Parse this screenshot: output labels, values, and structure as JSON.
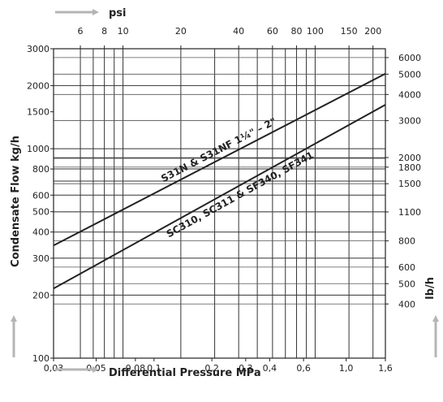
{
  "chart_data": {
    "type": "line",
    "title": "",
    "xlabel": "Differential Pressure MPa",
    "x2label": "psi",
    "ylabel": "Condensate Flow kg/h",
    "y2label": "lb/h",
    "x_scale": "log",
    "y_scale": "log",
    "xlim": [
      0.03,
      1.6
    ],
    "ylim": [
      100,
      3000
    ],
    "x_ticks": [
      0.03,
      0.05,
      0.08,
      0.1,
      0.2,
      0.3,
      0.4,
      0.6,
      1.0,
      1.6
    ],
    "x_tick_labels": [
      "0,03",
      "0,05",
      "0,08",
      "0,1",
      "0,2",
      "0,3",
      "0,4",
      "0,6",
      "1,0",
      "1,6"
    ],
    "y_ticks": [
      100,
      200,
      300,
      400,
      500,
      600,
      800,
      1000,
      1500,
      2000,
      3000
    ],
    "y_tick_labels": [
      "100",
      "200",
      "300",
      "400",
      "500",
      "600",
      "800",
      "1000",
      "1500",
      "2000",
      "3000"
    ],
    "x2_ticks": [
      6,
      8,
      10,
      20,
      40,
      60,
      80,
      100,
      150,
      200
    ],
    "x2_tick_labels": [
      "6",
      "8",
      "10",
      "20",
      "40",
      "60",
      "80",
      "100",
      "150",
      "200"
    ],
    "y2_ticks": [
      400,
      500,
      600,
      800,
      1100,
      1500,
      1800,
      2000,
      3000,
      4000,
      5000,
      6000
    ],
    "y2_tick_labels": [
      "400",
      "500",
      "600",
      "800",
      "1100",
      "1500",
      "1800",
      "2000",
      "3000",
      "4000",
      "5000",
      "6000"
    ],
    "grid": true,
    "series": [
      {
        "name": "S31N & S31NF   1¼\" – 2\"",
        "x": [
          0.03,
          1.6
        ],
        "y": [
          345,
          2280
        ]
      },
      {
        "name": "SC310, SC311 & SF340, SF341",
        "x": [
          0.03,
          1.6
        ],
        "y": [
          215,
          1620
        ]
      }
    ]
  }
}
